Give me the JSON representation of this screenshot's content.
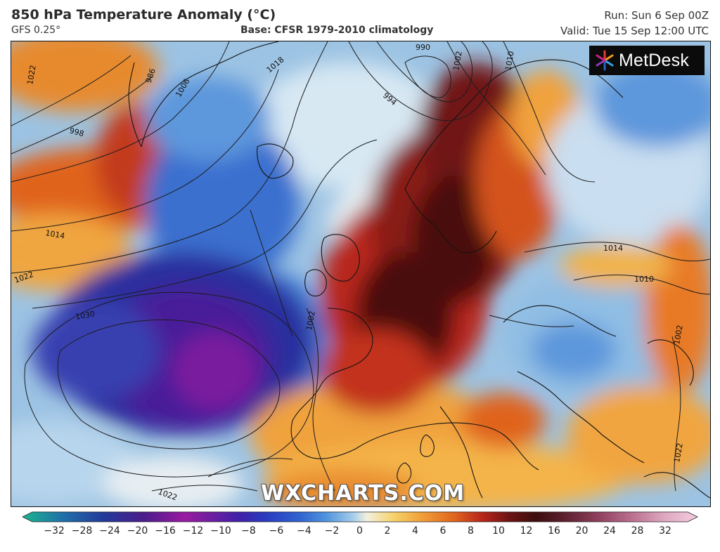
{
  "header": {
    "title": "850 hPa Temperature Anomaly (°C)",
    "model": "GFS 0.25°",
    "base": "Base: CFSR 1979-2010 climatology",
    "run": "Run: Sun 6 Sep 00Z",
    "valid": "Valid: Tue 15 Sep 12:00 UTC"
  },
  "logo": {
    "name": "MetDesk",
    "icon": "metdesk-star-icon"
  },
  "watermark": "WXCHARTS.COM",
  "isobars": [
    "1022",
    "1018",
    "990",
    "1002",
    "1006",
    "986",
    "994",
    "1010",
    "998",
    "1014",
    "1030",
    "1022",
    "1010",
    "1014",
    "1002",
    "1002",
    "1022",
    "1022"
  ],
  "legend": {
    "ticks": [
      "−32",
      "−28",
      "−24",
      "−20",
      "−16",
      "−12",
      "−10",
      "−8",
      "−6",
      "−4",
      "−2",
      "0",
      "2",
      "4",
      "6",
      "8",
      "10",
      "12",
      "16",
      "20",
      "24",
      "28",
      "32"
    ],
    "colors": [
      "#1bb68f",
      "#1f6fa8",
      "#233a9a",
      "#4b1d8c",
      "#9a1aa0",
      "#6d1fa0",
      "#4020a8",
      "#2a3bc0",
      "#2f63d0",
      "#4f94de",
      "#a6cdeb",
      "#f2f0e0",
      "#f6d26a",
      "#f1a13a",
      "#e0641e",
      "#b8281a",
      "#6f1414",
      "#3d0d0d",
      "#5a1f2c",
      "#8c3d5a",
      "#b86c8c",
      "#dea7bf",
      "#f4cce0"
    ]
  }
}
